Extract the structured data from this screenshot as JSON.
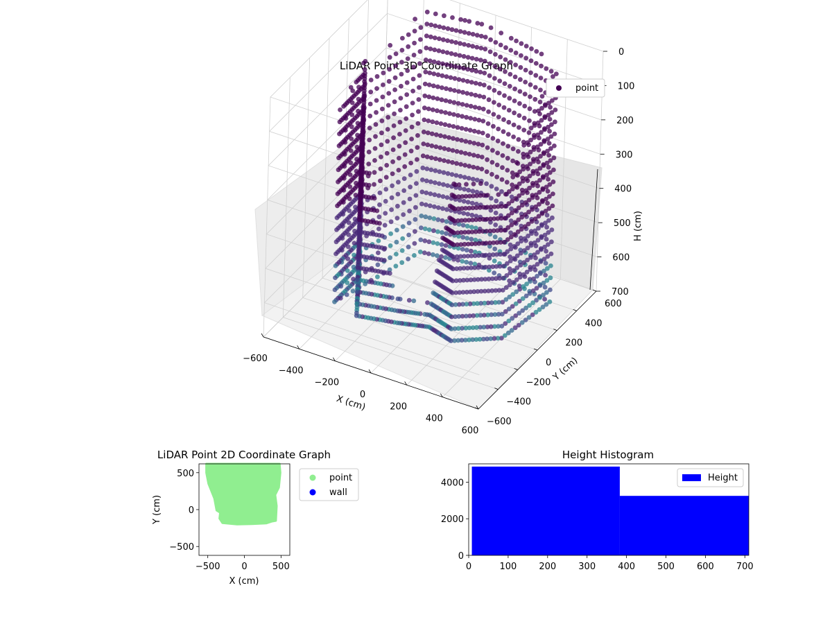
{
  "chart_data": [
    {
      "type": "scatter",
      "title": "LiDAR Point 3D Coordinate Graph",
      "xlabel": "X (cm)",
      "ylabel": "Y (cm)",
      "zlabel": "H (cm)",
      "xlim": [
        -600,
        600
      ],
      "ylim": [
        -600,
        600
      ],
      "zlim": [
        700,
        0
      ],
      "xticks": [
        -600,
        -400,
        -200,
        0,
        200,
        400,
        600
      ],
      "yticks": [
        -600,
        -400,
        -200,
        0,
        200,
        400,
        600
      ],
      "zticks": [
        0,
        100,
        200,
        300,
        400,
        500,
        600,
        700
      ],
      "legend": {
        "entries": [
          {
            "name": "point",
            "color": "#440154"
          }
        ],
        "position": "top-right"
      },
      "colormap": "viridis",
      "grid": true,
      "series": [
        {
          "name": "point",
          "description_points": [
            {
              "x": -450,
              "y": -150,
              "h": 150
            },
            {
              "x": -450,
              "y": 100,
              "h": 80
            },
            {
              "x": -300,
              "y": -200,
              "h": 200
            },
            {
              "x": -100,
              "y": -150,
              "h": 650
            },
            {
              "x": 50,
              "y": -100,
              "h": 650
            },
            {
              "x": 200,
              "y": -150,
              "h": 220
            },
            {
              "x": 400,
              "y": 0,
              "h": 300
            },
            {
              "x": 450,
              "y": 400,
              "h": 0
            },
            {
              "x": 0,
              "y": 500,
              "h": 0
            },
            {
              "x": -300,
              "y": 450,
              "h": 0
            }
          ]
        }
      ]
    },
    {
      "type": "scatter",
      "title": "LiDAR Point 2D Coordinate Graph",
      "xlabel": "X (cm)",
      "ylabel": "Y (cm)",
      "xlim": [
        -620,
        620
      ],
      "ylim": [
        -620,
        620
      ],
      "xticks": [
        -500,
        0,
        500
      ],
      "yticks": [
        -500,
        0,
        500
      ],
      "legend": {
        "entries": [
          {
            "name": "point",
            "color": "#90ee90"
          },
          {
            "name": "wall",
            "color": "#0000ff"
          }
        ],
        "position": "outside-right"
      },
      "series": [
        {
          "name": "point",
          "outline": [
            [
              -520,
              620
            ],
            [
              480,
              620
            ],
            [
              490,
              500
            ],
            [
              470,
              300
            ],
            [
              420,
              200
            ],
            [
              440,
              50
            ],
            [
              430,
              -150
            ],
            [
              380,
              -160
            ],
            [
              300,
              -185
            ],
            [
              100,
              -195
            ],
            [
              -100,
              -200
            ],
            [
              -300,
              -180
            ],
            [
              -340,
              -120
            ],
            [
              -330,
              -40
            ],
            [
              -380,
              -10
            ],
            [
              -410,
              150
            ],
            [
              -490,
              350
            ],
            [
              -520,
              500
            ]
          ]
        },
        {
          "name": "wall",
          "outline": []
        }
      ]
    },
    {
      "type": "bar",
      "title": "Height Histogram",
      "xlim": [
        0,
        710
      ],
      "ylim": [
        0,
        5000
      ],
      "xticks": [
        0,
        100,
        200,
        300,
        400,
        500,
        600,
        700
      ],
      "yticks": [
        0,
        2000,
        4000
      ],
      "legend": {
        "entries": [
          {
            "name": "Height",
            "color": "#0000ff"
          }
        ],
        "position": "top-right"
      },
      "series": [
        {
          "name": "Height",
          "bins": [
            {
              "start": 8,
              "end": 383,
              "count": 4850
            },
            {
              "start": 383,
              "end": 710,
              "count": 3250
            }
          ]
        }
      ]
    }
  ]
}
